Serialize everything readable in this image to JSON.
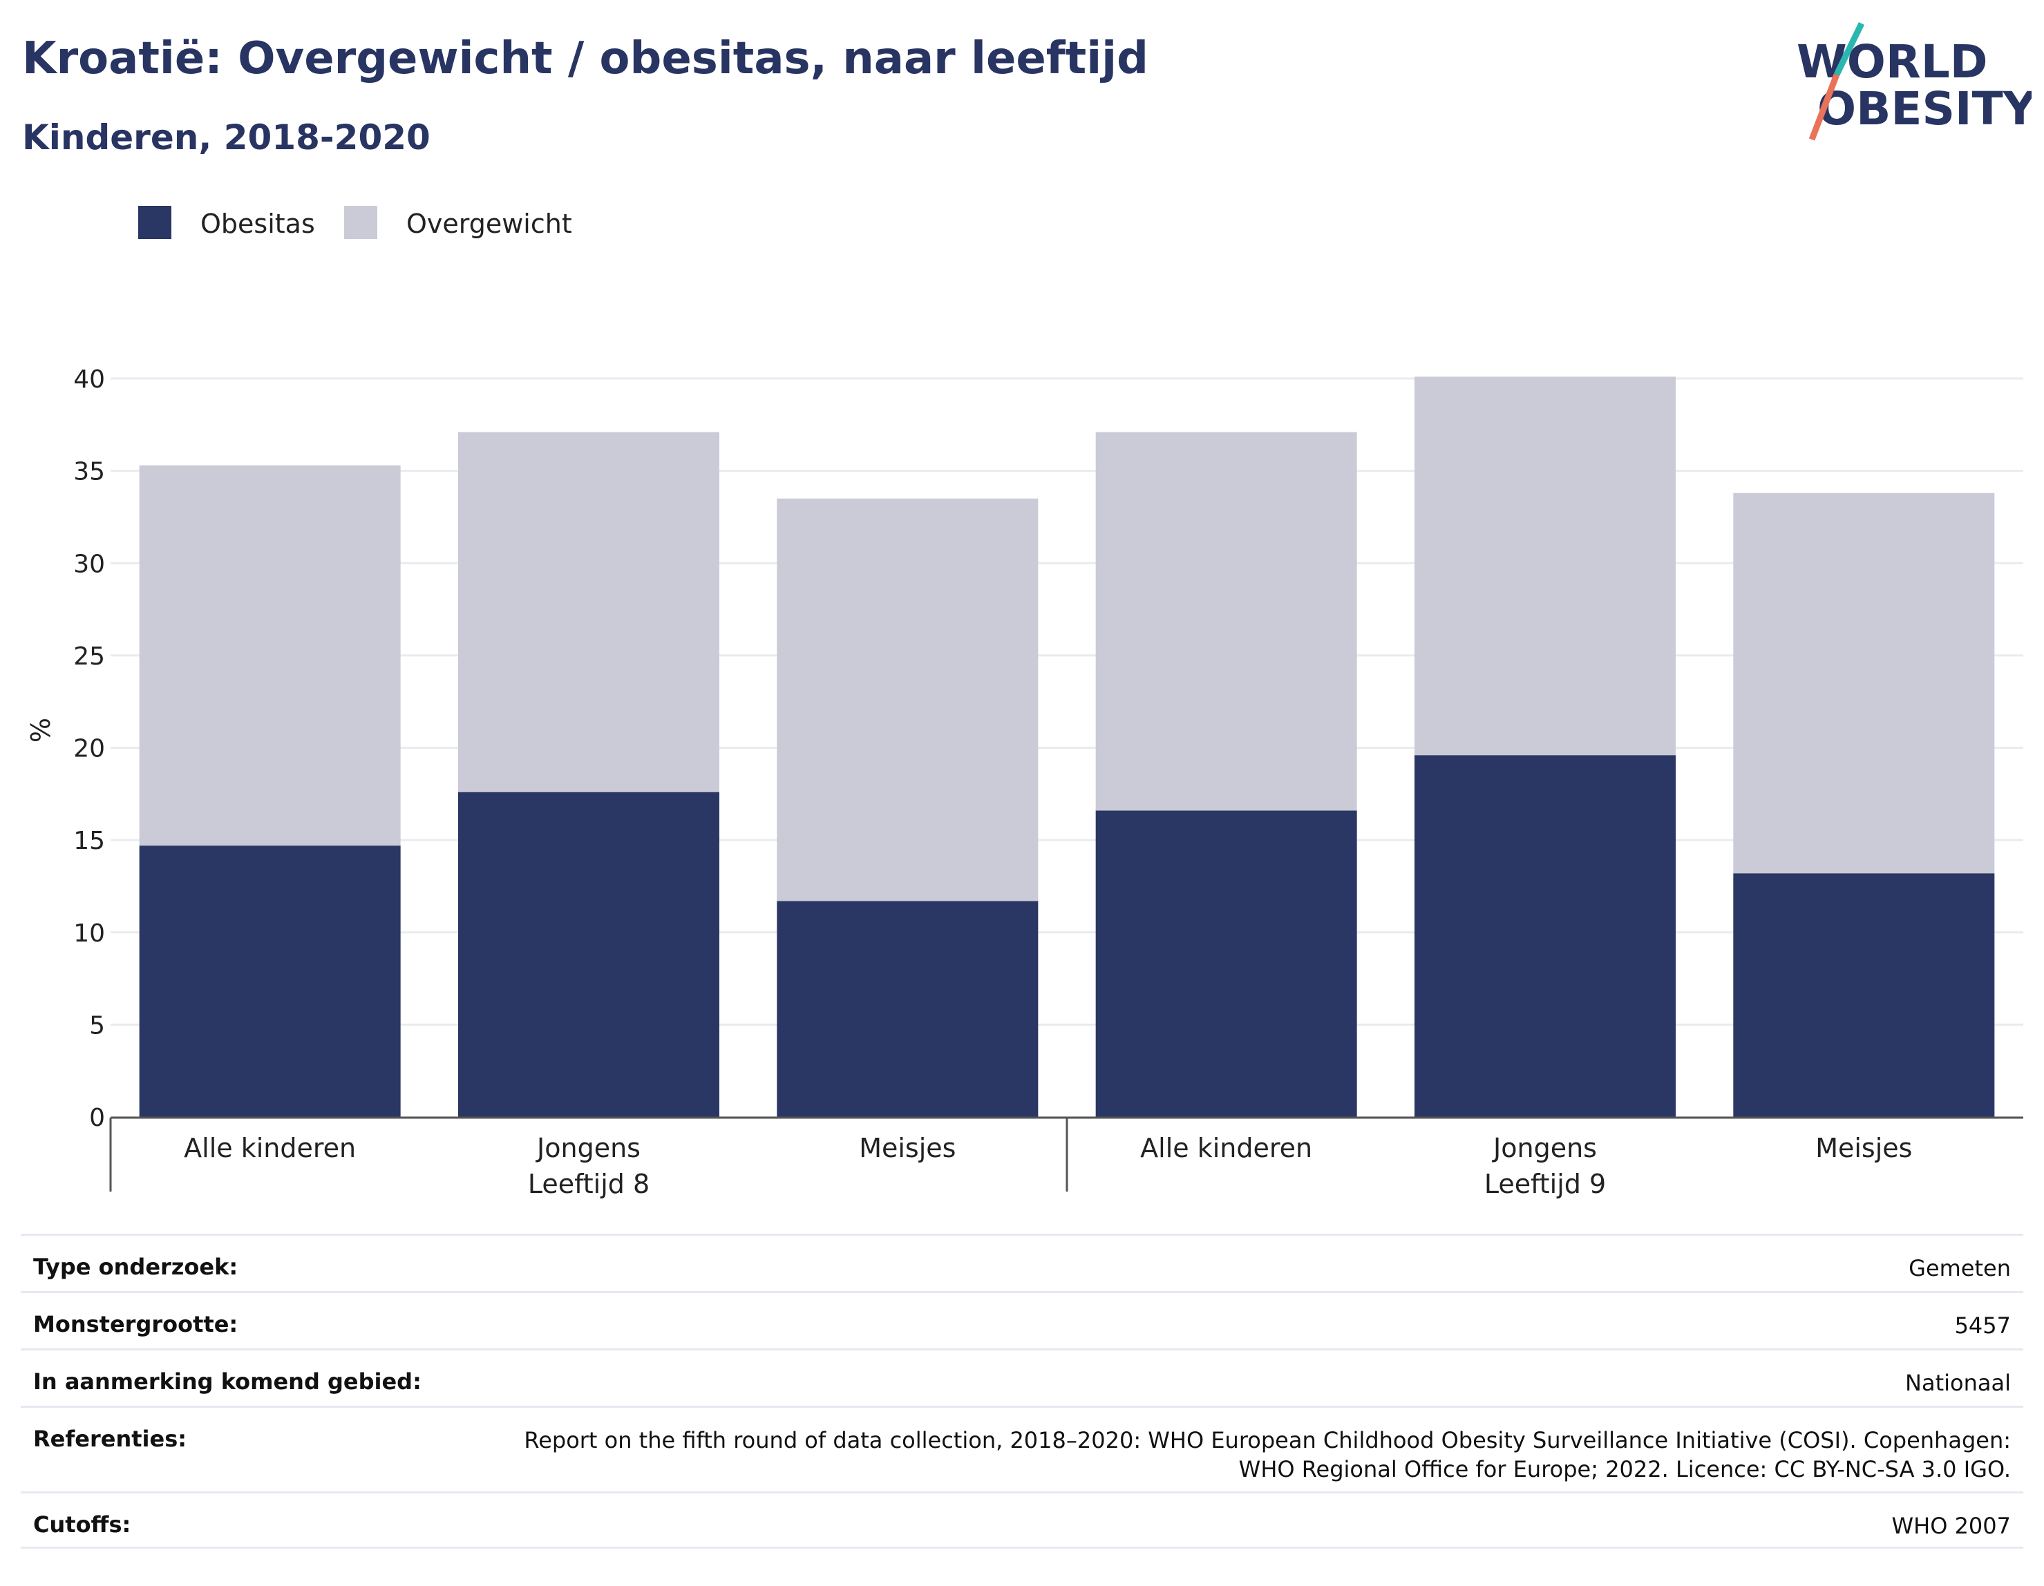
{
  "header": {
    "title": "Kroatië: Overgewicht / obesitas, naar leeftijd",
    "subtitle": "Kinderen, 2018-2020"
  },
  "logo": {
    "line1": "WORLD",
    "line2": "OBESITY"
  },
  "colors": {
    "obesity": "#2a3663",
    "overweight": "#cacbd7",
    "text": "#283462",
    "grid": "#e9ebf0"
  },
  "chart_data": {
    "type": "bar",
    "stacked": true,
    "ylabel": "%",
    "ylim": [
      0,
      40
    ],
    "yticks": [
      0,
      5,
      10,
      15,
      20,
      25,
      30,
      35,
      40
    ],
    "categories": [
      "Alle kinderen",
      "Jongens",
      "Meisjes",
      "Alle kinderen",
      "Jongens",
      "Meisjes"
    ],
    "groups": [
      {
        "label": "Leeftijd 8",
        "categories": [
          "Alle kinderen",
          "Jongens",
          "Meisjes"
        ]
      },
      {
        "label": "Leeftijd 9",
        "categories": [
          "Alle kinderen",
          "Jongens",
          "Meisjes"
        ]
      }
    ],
    "series": [
      {
        "name": "Obesitas",
        "values": [
          14.7,
          17.6,
          11.7,
          16.6,
          19.6,
          13.2
        ]
      },
      {
        "name": "Overgewicht",
        "values": [
          20.6,
          19.5,
          21.8,
          20.5,
          20.5,
          20.6
        ]
      }
    ],
    "legend": "top-left",
    "grid": true
  },
  "meta": [
    {
      "key": "Type onderzoek:",
      "value": "Gemeten"
    },
    {
      "key": "Monstergrootte:",
      "value": "5457"
    },
    {
      "key": "In aanmerking komend gebied:",
      "value": "Nationaal"
    },
    {
      "key": "Referenties:",
      "value": "Report on the fifth round of data collection, 2018–2020: WHO European Childhood Obesity Surveillance Initiative (COSI). Copenhagen: WHO Regional Office for Europe; 2022. Licence: CC BY-NC-SA 3.0 IGO."
    },
    {
      "key": "Cutoffs:",
      "value": "WHO 2007"
    }
  ]
}
